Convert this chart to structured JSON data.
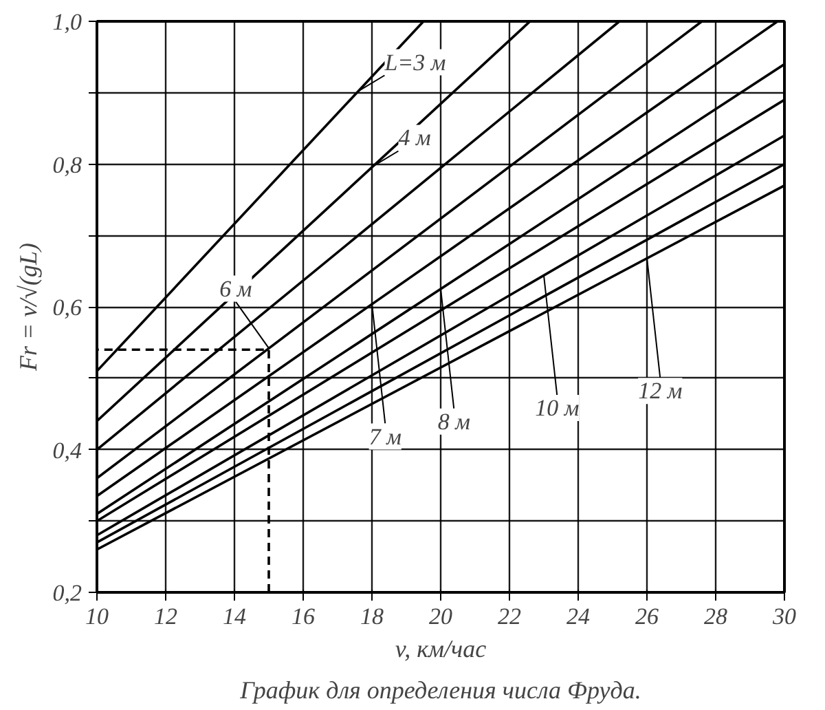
{
  "chart_data": {
    "type": "line",
    "xlabel": "v, км/час",
    "ylabel": "Fr = v/√(gL)",
    "xlim": [
      10,
      30
    ],
    "ylim": [
      0.2,
      1.0
    ],
    "xticks": [
      10,
      12,
      14,
      16,
      18,
      20,
      22,
      24,
      26,
      28,
      30
    ],
    "yticks": [
      {
        "value": 0.2,
        "label": "0,2"
      },
      {
        "value": 0.3,
        "label": null
      },
      {
        "value": 0.4,
        "label": "0,4"
      },
      {
        "value": 0.5,
        "label": null
      },
      {
        "value": 0.6,
        "label": "0,6"
      },
      {
        "value": 0.7,
        "label": null
      },
      {
        "value": 0.8,
        "label": "0,8"
      },
      {
        "value": 0.9,
        "label": null
      },
      {
        "value": 1.0,
        "label": "1,0"
      }
    ],
    "grid": true,
    "line_style": "solid",
    "marker": "none",
    "series": [
      {
        "color": "#000000",
        "x": [
          10,
          19.5
        ],
        "values": [
          0.51,
          1.0
        ]
      },
      {
        "color": "#000000",
        "x": [
          10,
          22.6
        ],
        "values": [
          0.44,
          1.0
        ]
      },
      {
        "color": "#000000",
        "x": [
          10,
          25.2
        ],
        "values": [
          0.4,
          1.0
        ]
      },
      {
        "color": "#000000",
        "x": [
          10,
          27.6
        ],
        "values": [
          0.36,
          1.0
        ]
      },
      {
        "color": "#000000",
        "x": [
          10,
          29.8
        ],
        "values": [
          0.335,
          1.0
        ]
      },
      {
        "color": "#000000",
        "x": [
          10,
          30
        ],
        "values": [
          0.31,
          0.94
        ]
      },
      {
        "color": "#000000",
        "x": [
          10,
          30
        ],
        "values": [
          0.3,
          0.89
        ]
      },
      {
        "color": "#000000",
        "x": [
          10,
          30
        ],
        "values": [
          0.28,
          0.84
        ]
      },
      {
        "color": "#000000",
        "x": [
          10,
          30
        ],
        "values": [
          0.27,
          0.8
        ]
      },
      {
        "color": "#000000",
        "x": [
          10,
          30
        ],
        "values": [
          0.26,
          0.77
        ]
      },
      {
        "color": "#000000",
        "x": [
          15,
          15,
          10
        ],
        "values": [
          0.2,
          0.54,
          0.54
        ],
        "line_style": "dashed"
      }
    ],
    "annotations": [
      {
        "text": "L=3 м",
        "x": 17.6,
        "y": 0.902
      },
      {
        "text": "4 м",
        "x": 18,
        "y": 0.796
      },
      {
        "text": "6 м",
        "x": 15,
        "y": 0.542
      },
      {
        "text": "7 м",
        "x": 18,
        "y": 0.604
      },
      {
        "text": "8 м",
        "x": 20,
        "y": 0.625
      },
      {
        "text": "10 м",
        "x": 23,
        "y": 0.644
      },
      {
        "text": "12 м",
        "x": 26,
        "y": 0.668
      },
      "График для определения числа Фруда."
    ]
  }
}
